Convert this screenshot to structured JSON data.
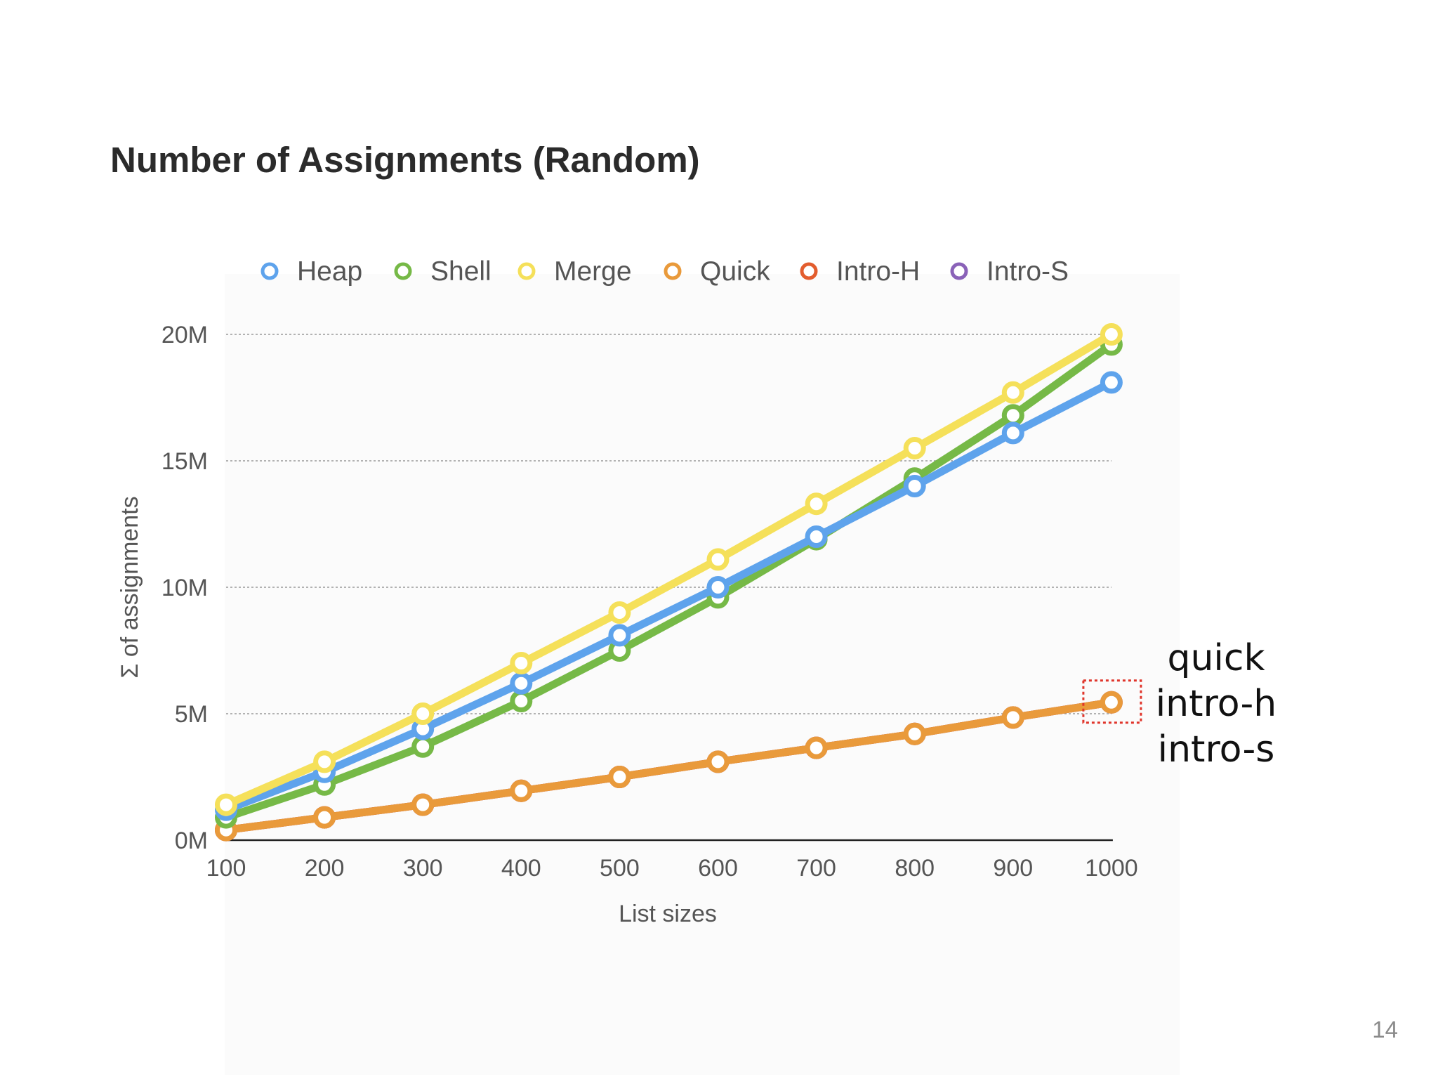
{
  "slide": {
    "title": "Number of Assignments (Random)",
    "page_number": "14"
  },
  "annotation": {
    "lines": [
      "quick",
      "intro-h",
      "intro-s"
    ],
    "box_color": "#e0352b"
  },
  "chart_data": {
    "type": "line",
    "title": "Number of Assignments (Random)",
    "xlabel": "List sizes",
    "ylabel": "Σ of assignments",
    "categories": [
      "100",
      "200",
      "300",
      "400",
      "500",
      "600",
      "700",
      "800",
      "900",
      "1000"
    ],
    "y_ticks": [
      {
        "value": 0,
        "label": "0M"
      },
      {
        "value": 5,
        "label": "5M"
      },
      {
        "value": 10,
        "label": "10M"
      },
      {
        "value": 15,
        "label": "15M"
      },
      {
        "value": 20,
        "label": "20M"
      }
    ],
    "ylim": [
      0,
      20
    ],
    "y_unit": "millions",
    "grid": "horizontal dotted",
    "legend_position": "top",
    "series": [
      {
        "name": "Heap",
        "color": "#5ea3ec",
        "values": [
          1.2,
          2.7,
          4.4,
          6.2,
          8.1,
          10.0,
          12.0,
          14.0,
          16.1,
          18.1
        ]
      },
      {
        "name": "Shell",
        "color": "#76b947",
        "values": [
          0.9,
          2.2,
          3.7,
          5.5,
          7.5,
          9.6,
          11.9,
          14.3,
          16.8,
          19.6
        ]
      },
      {
        "name": "Merge",
        "color": "#f5e05a",
        "values": [
          1.4,
          3.1,
          5.0,
          7.0,
          9.0,
          11.1,
          13.3,
          15.5,
          17.7,
          20.0
        ]
      },
      {
        "name": "Quick",
        "color": "#e99a3b",
        "values": [
          0.4,
          0.9,
          1.4,
          1.95,
          2.5,
          3.1,
          3.65,
          4.2,
          4.85,
          5.45
        ]
      },
      {
        "name": "Intro-H",
        "color": "#e35d2e",
        "values": [
          0.4,
          0.9,
          1.4,
          1.95,
          2.5,
          3.1,
          3.65,
          4.2,
          4.85,
          5.45
        ]
      },
      {
        "name": "Intro-S",
        "color": "#8a62b8",
        "values": [
          0.4,
          0.9,
          1.4,
          1.95,
          2.5,
          3.1,
          3.65,
          4.2,
          4.85,
          5.45
        ]
      }
    ],
    "draw_order": [
      "Intro-S",
      "Intro-H",
      "Quick",
      "Shell",
      "Heap",
      "Merge"
    ]
  }
}
